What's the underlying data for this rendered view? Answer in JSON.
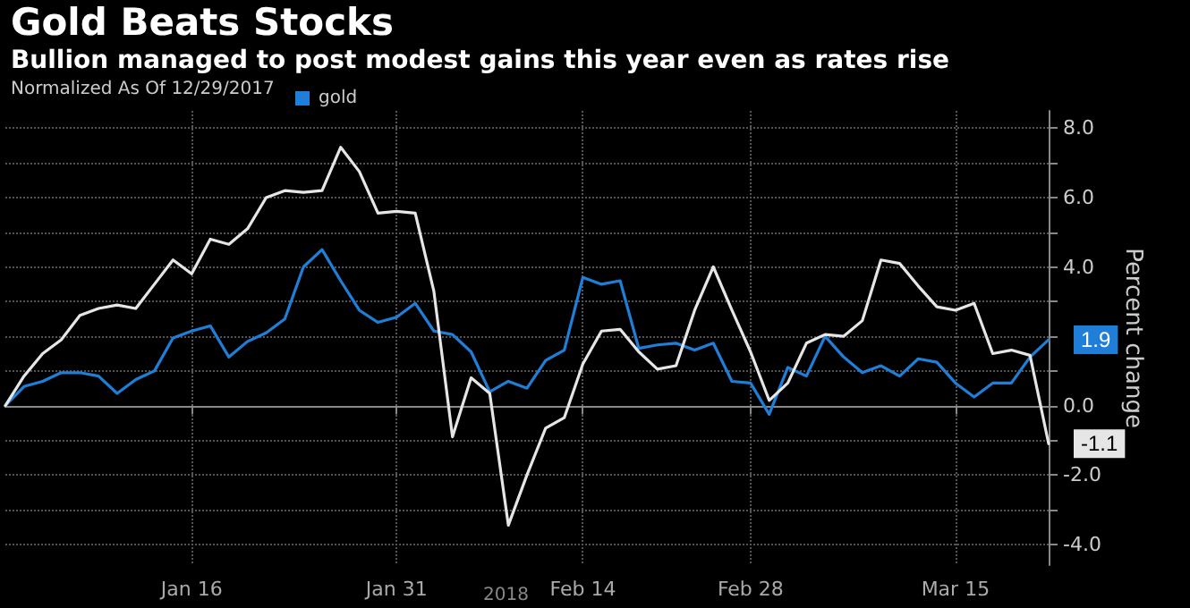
{
  "chart_data": {
    "type": "line",
    "title": "Gold Beats Stocks",
    "subtitle": "Bullion managed to post modest gains this year even as rates rise",
    "legend_title": "Normalized As Of 12/29/2017",
    "ylabel": "Percent change",
    "annotations": [
      "2018"
    ],
    "categories": [
      null,
      null,
      null,
      null,
      null,
      null,
      null,
      null,
      null,
      null,
      "Jan 16",
      null,
      null,
      null,
      null,
      null,
      null,
      null,
      null,
      null,
      null,
      "Jan 31",
      null,
      null,
      null,
      null,
      null,
      null,
      null,
      null,
      null,
      "Feb 14",
      null,
      null,
      null,
      null,
      null,
      null,
      null,
      null,
      "Feb 28",
      null,
      null,
      null,
      null,
      null,
      null,
      null,
      null,
      null,
      null,
      "Mar 15",
      null,
      null,
      null,
      null,
      null
    ],
    "series": [
      {
        "color": "#e6e6e6",
        "values": [
          0,
          0.85,
          1.5,
          1.9,
          2.6,
          2.8,
          2.9,
          2.8,
          3.5,
          4.2,
          3.8,
          4.8,
          4.65,
          5.1,
          6.0,
          6.2,
          6.15,
          6.2,
          7.45,
          6.75,
          5.55,
          5.6,
          5.55,
          3.3,
          -0.9,
          0.8,
          0.35,
          -3.45,
          -2.0,
          -0.65,
          -0.35,
          1.2,
          2.15,
          2.2,
          1.55,
          1.05,
          1.15,
          2.75,
          4.0,
          2.75,
          1.55,
          0.15,
          0.65,
          1.8,
          2.05,
          2.0,
          2.45,
          4.2,
          4.1,
          3.45,
          2.85,
          2.75,
          2.95,
          1.5,
          1.6,
          1.45,
          -1.1
        ],
        "value_labels": [
          null,
          null,
          null,
          null,
          null,
          null,
          null,
          null,
          null,
          null,
          null,
          null,
          null,
          null,
          null,
          null,
          null,
          null,
          null,
          null,
          null,
          null,
          null,
          null,
          null,
          null,
          null,
          null,
          null,
          null,
          null,
          null,
          null,
          null,
          null,
          null,
          null,
          null,
          null,
          null,
          null,
          null,
          null,
          null,
          null,
          null,
          null,
          null,
          null,
          null,
          null,
          null,
          null,
          null,
          null,
          null,
          "-1.1"
        ]
      },
      {
        "name": "gold",
        "color": "#1f7fd8",
        "values": [
          0,
          0.55,
          0.7,
          0.95,
          0.95,
          0.85,
          0.35,
          0.75,
          1.0,
          1.95,
          2.15,
          2.3,
          1.4,
          1.85,
          2.1,
          2.5,
          4.0,
          4.5,
          3.6,
          2.75,
          2.4,
          2.55,
          2.95,
          2.15,
          2.05,
          1.55,
          0.4,
          0.7,
          0.5,
          1.3,
          1.6,
          3.7,
          3.5,
          3.6,
          1.65,
          1.75,
          1.8,
          1.6,
          1.8,
          0.7,
          0.65,
          -0.25,
          1.1,
          0.85,
          2.0,
          1.4,
          0.95,
          1.15,
          0.85,
          1.35,
          1.25,
          0.65,
          0.25,
          0.65,
          0.65,
          1.4,
          1.9
        ],
        "value_labels": [
          null,
          null,
          null,
          null,
          null,
          null,
          null,
          null,
          null,
          null,
          null,
          null,
          null,
          null,
          null,
          null,
          null,
          null,
          null,
          null,
          null,
          null,
          null,
          null,
          null,
          null,
          null,
          null,
          null,
          null,
          null,
          null,
          null,
          null,
          null,
          null,
          null,
          null,
          null,
          null,
          null,
          null,
          null,
          null,
          null,
          null,
          null,
          null,
          null,
          null,
          null,
          null,
          null,
          null,
          null,
          null,
          "1.9"
        ]
      }
    ],
    "ylim": [
      -4.6,
      8.5
    ],
    "yticks": [
      {
        "value": -4,
        "label": "-4.0"
      },
      {
        "value": -3,
        "label": null
      },
      {
        "value": -2,
        "label": "-2.0"
      },
      {
        "value": -1,
        "label": null
      },
      {
        "value": 0,
        "label": "0.0"
      },
      {
        "value": 1,
        "label": null
      },
      {
        "value": 2,
        "label": null
      },
      {
        "value": 3,
        "label": null
      },
      {
        "value": 4,
        "label": "4.0"
      },
      {
        "value": 5,
        "label": null
      },
      {
        "value": 6,
        "label": "6.0"
      },
      {
        "value": 7,
        "label": null
      },
      {
        "value": 8,
        "label": "8.0"
      }
    ],
    "grid": true,
    "legend": "top left",
    "marker": "none",
    "line_style": "solid"
  }
}
